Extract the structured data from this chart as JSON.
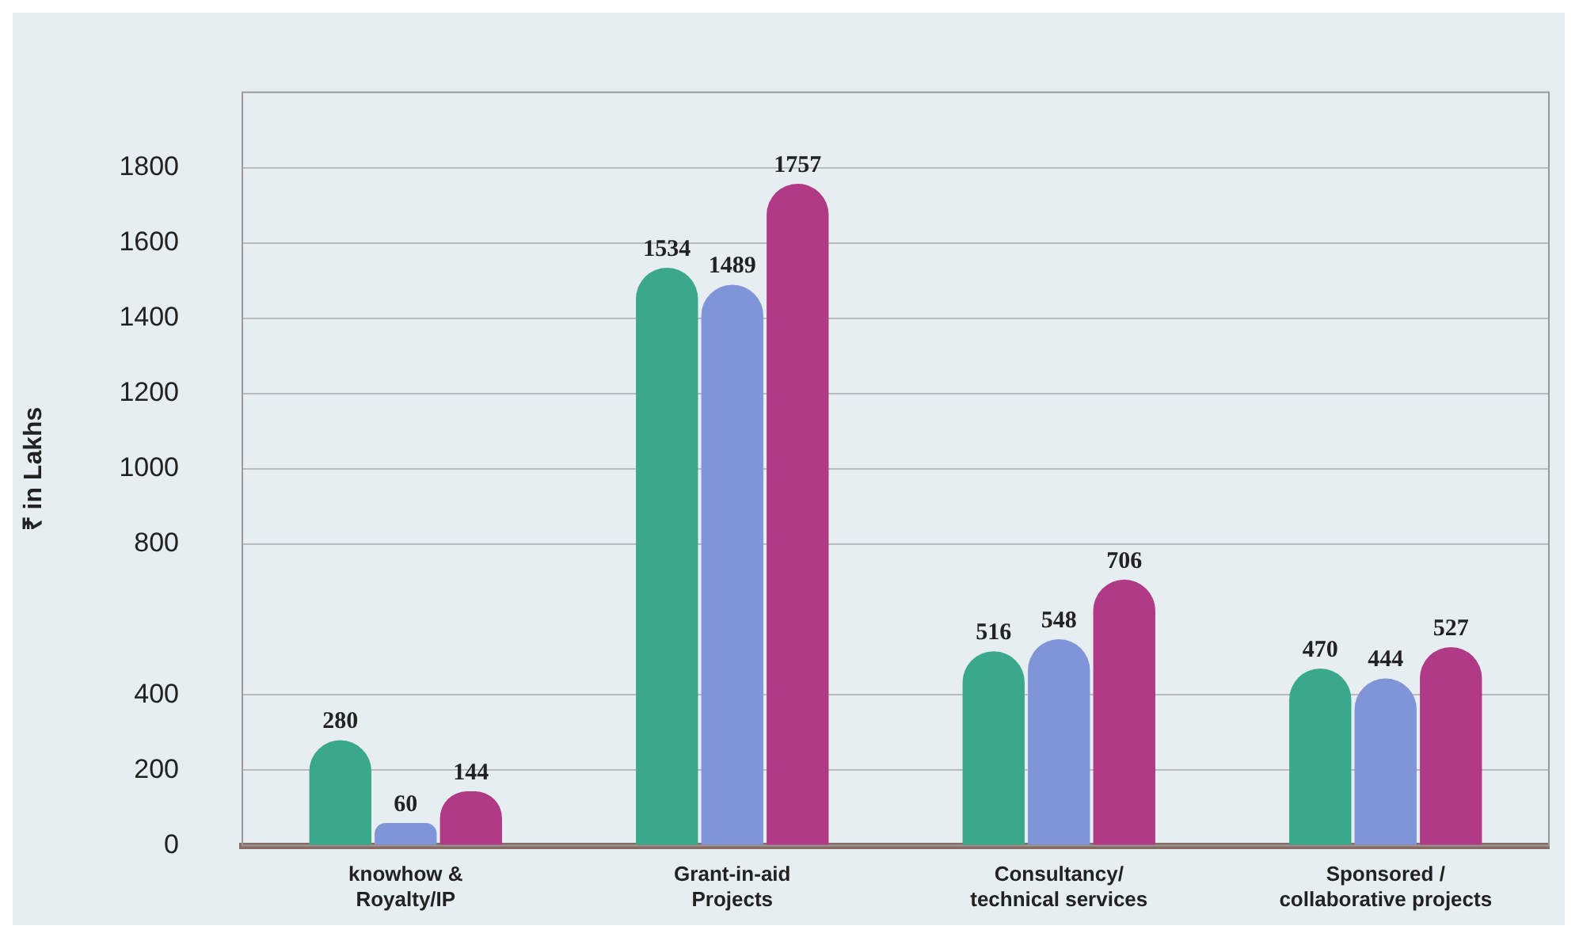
{
  "chart_data": {
    "type": "bar",
    "ylabel": "₹ in Lakhs",
    "categories": [
      "knowhow &\nRoyalty/IP",
      "Grant-in-aid\nProjects",
      "Consultancy/\ntechnical services",
      "Sponsored /\ncollaborative projects"
    ],
    "series": [
      {
        "color": "#3aa88a",
        "values": [
          280,
          1534,
          516,
          470
        ]
      },
      {
        "color": "#8094d8",
        "values": [
          60,
          1489,
          548,
          444
        ]
      },
      {
        "color": "#b03a86",
        "values": [
          144,
          1757,
          706,
          527
        ]
      }
    ],
    "ylim": [
      0,
      2000
    ],
    "yticks": [
      0,
      200,
      400,
      800,
      1000,
      1200,
      1400,
      1600,
      1800
    ],
    "grid": "y",
    "data_labels": true
  }
}
